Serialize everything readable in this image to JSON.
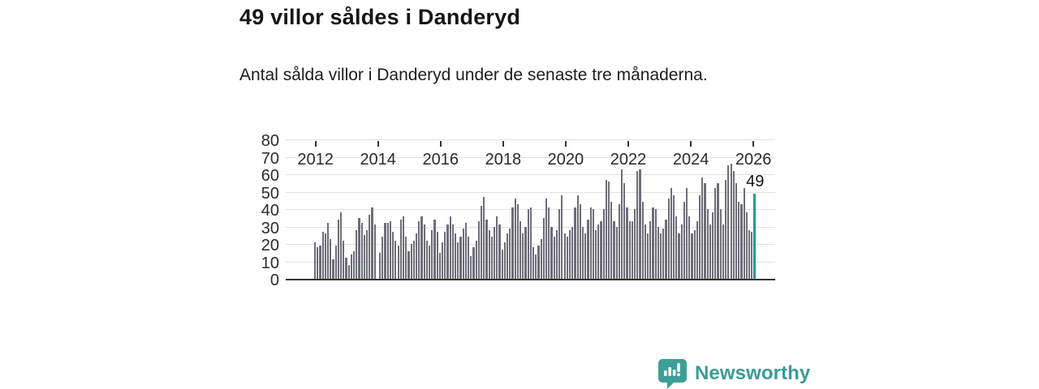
{
  "header": {
    "title": "49 villor såldes i Danderyd",
    "subtitle": "Antal sålda villor i Danderyd under de senaste tre månaderna."
  },
  "chart_data": {
    "type": "bar",
    "title": "49 villor såldes i Danderyd",
    "description": "Antal sålda villor i Danderyd under de senaste tre månaderna.",
    "x_start": "2012-01",
    "x_frequency": "monthly",
    "x_tick_years": [
      2012,
      2014,
      2016,
      2018,
      2020,
      2022,
      2024,
      2026
    ],
    "y_ticks": [
      0,
      10,
      20,
      30,
      40,
      50,
      60,
      70,
      80
    ],
    "ylim": [
      0,
      80
    ],
    "grid": "horizontal",
    "bar_color": "#6e6e78",
    "highlight_color": "#00a39e",
    "highlight_index": 169,
    "highlight_label": "49",
    "values": [
      21,
      18,
      19,
      27,
      26,
      32,
      23,
      11,
      19,
      34,
      38,
      22,
      12,
      8,
      14,
      16,
      28,
      35,
      32,
      25,
      28,
      37,
      41,
      31,
      0,
      15,
      24,
      32,
      32,
      33,
      27,
      22,
      19,
      34,
      36,
      24,
      16,
      20,
      22,
      26,
      33,
      36,
      31,
      22,
      19,
      28,
      34,
      27,
      15,
      21,
      27,
      31,
      36,
      31,
      26,
      21,
      24,
      29,
      32,
      24,
      13,
      18,
      22,
      33,
      42,
      47,
      34,
      28,
      24,
      30,
      36,
      31,
      17,
      21,
      26,
      29,
      41,
      46,
      43,
      33,
      26,
      30,
      40,
      41,
      18,
      14,
      19,
      23,
      35,
      46,
      41,
      30,
      24,
      28,
      40,
      48,
      26,
      24,
      28,
      30,
      41,
      48,
      43,
      30,
      26,
      34,
      41,
      40,
      28,
      31,
      33,
      40,
      57,
      56,
      44,
      33,
      30,
      43,
      63,
      55,
      41,
      33,
      33,
      40,
      62,
      63,
      44,
      31,
      26,
      33,
      41,
      40,
      30,
      26,
      29,
      34,
      46,
      52,
      48,
      36,
      26,
      31,
      44,
      52,
      36,
      26,
      28,
      33,
      48,
      58,
      55,
      40,
      31,
      38,
      52,
      55,
      40,
      31,
      57,
      65,
      66,
      62,
      55,
      44,
      43,
      52,
      38,
      28,
      27,
      49
    ]
  },
  "footer": {
    "brand": "Newsworthy",
    "logo_icon": "bar-chart-speech-bubble-icon",
    "brand_color": "#3a9c95"
  }
}
